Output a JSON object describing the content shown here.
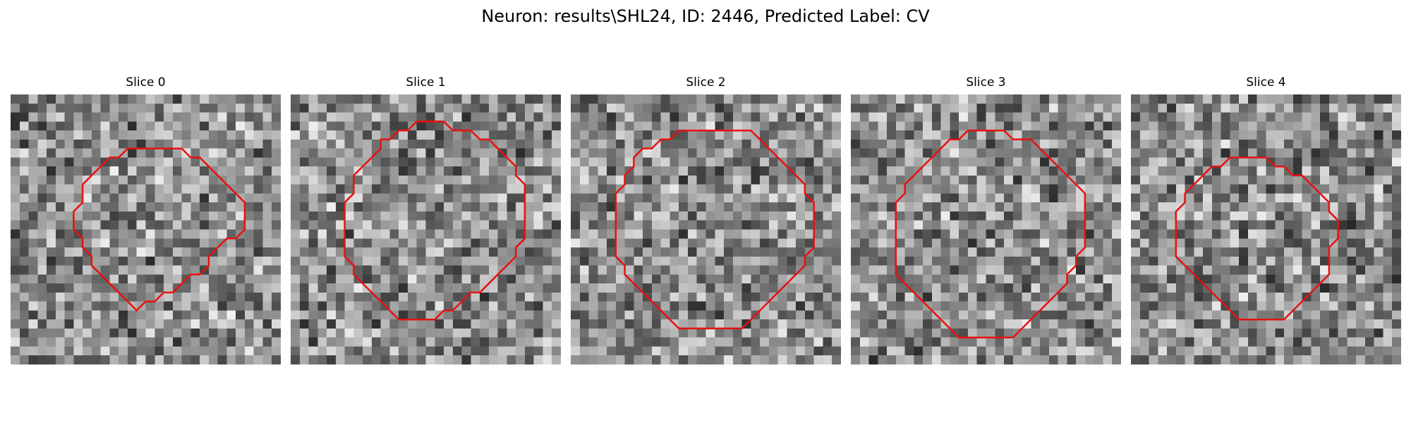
{
  "figure": {
    "title": "Neuron: results\\SHL24, ID: 2446, Predicted Label: CV",
    "contour_color": "#e8110f"
  },
  "panels": [
    {
      "title": "Slice 0",
      "seed": 11,
      "contour": [
        [
          14,
          6
        ],
        [
          19,
          6
        ],
        [
          20,
          7
        ],
        [
          21,
          7
        ],
        [
          22,
          8
        ],
        [
          23,
          9
        ],
        [
          24,
          10
        ],
        [
          25,
          11
        ],
        [
          26,
          12
        ],
        [
          26,
          13
        ],
        [
          26,
          14
        ],
        [
          26,
          15
        ],
        [
          25,
          16
        ],
        [
          24,
          16
        ],
        [
          23,
          17
        ],
        [
          22,
          18
        ],
        [
          22,
          19
        ],
        [
          21,
          20
        ],
        [
          20,
          20
        ],
        [
          19,
          21
        ],
        [
          18,
          22
        ],
        [
          17,
          22
        ],
        [
          16,
          23
        ],
        [
          15,
          23
        ],
        [
          14,
          24
        ],
        [
          13,
          23
        ],
        [
          12,
          22
        ],
        [
          11,
          21
        ],
        [
          10,
          20
        ],
        [
          9,
          19
        ],
        [
          9,
          18
        ],
        [
          8,
          17
        ],
        [
          8,
          16
        ],
        [
          7,
          15
        ],
        [
          7,
          14
        ],
        [
          7,
          13
        ],
        [
          8,
          12
        ],
        [
          8,
          11
        ],
        [
          8,
          10
        ],
        [
          9,
          9
        ],
        [
          10,
          8
        ],
        [
          11,
          7
        ],
        [
          12,
          7
        ],
        [
          13,
          6
        ],
        [
          14,
          6
        ]
      ]
    },
    {
      "title": "Slice 1",
      "seed": 23,
      "contour": [
        [
          14,
          3
        ],
        [
          17,
          3
        ],
        [
          18,
          4
        ],
        [
          19,
          4
        ],
        [
          20,
          4
        ],
        [
          21,
          5
        ],
        [
          22,
          5
        ],
        [
          23,
          6
        ],
        [
          24,
          7
        ],
        [
          25,
          8
        ],
        [
          25,
          9
        ],
        [
          26,
          10
        ],
        [
          26,
          11
        ],
        [
          26,
          12
        ],
        [
          26,
          13
        ],
        [
          26,
          14
        ],
        [
          26,
          15
        ],
        [
          26,
          16
        ],
        [
          25,
          17
        ],
        [
          25,
          18
        ],
        [
          24,
          19
        ],
        [
          23,
          20
        ],
        [
          22,
          21
        ],
        [
          21,
          22
        ],
        [
          20,
          22
        ],
        [
          19,
          23
        ],
        [
          18,
          24
        ],
        [
          17,
          24
        ],
        [
          16,
          25
        ],
        [
          15,
          25
        ],
        [
          14,
          25
        ],
        [
          13,
          25
        ],
        [
          12,
          25
        ],
        [
          11,
          24
        ],
        [
          10,
          23
        ],
        [
          9,
          22
        ],
        [
          8,
          21
        ],
        [
          7,
          20
        ],
        [
          7,
          19
        ],
        [
          6,
          18
        ],
        [
          6,
          17
        ],
        [
          6,
          16
        ],
        [
          6,
          15
        ],
        [
          6,
          14
        ],
        [
          6,
          13
        ],
        [
          6,
          12
        ],
        [
          7,
          11
        ],
        [
          7,
          10
        ],
        [
          7,
          9
        ],
        [
          8,
          8
        ],
        [
          9,
          7
        ],
        [
          10,
          6
        ],
        [
          10,
          5
        ],
        [
          11,
          5
        ],
        [
          12,
          4
        ],
        [
          13,
          4
        ],
        [
          14,
          3
        ]
      ]
    },
    {
      "title": "Slice 2",
      "seed": 37,
      "contour": [
        [
          12,
          4
        ],
        [
          20,
          4
        ],
        [
          21,
          5
        ],
        [
          22,
          6
        ],
        [
          23,
          7
        ],
        [
          24,
          8
        ],
        [
          25,
          9
        ],
        [
          26,
          10
        ],
        [
          26,
          11
        ],
        [
          27,
          12
        ],
        [
          27,
          13
        ],
        [
          27,
          14
        ],
        [
          27,
          15
        ],
        [
          27,
          16
        ],
        [
          27,
          17
        ],
        [
          26,
          18
        ],
        [
          26,
          19
        ],
        [
          25,
          20
        ],
        [
          24,
          21
        ],
        [
          23,
          22
        ],
        [
          22,
          23
        ],
        [
          21,
          24
        ],
        [
          20,
          25
        ],
        [
          19,
          26
        ],
        [
          18,
          26
        ],
        [
          13,
          26
        ],
        [
          12,
          26
        ],
        [
          11,
          25
        ],
        [
          10,
          24
        ],
        [
          9,
          23
        ],
        [
          8,
          22
        ],
        [
          7,
          21
        ],
        [
          6,
          20
        ],
        [
          6,
          19
        ],
        [
          5,
          18
        ],
        [
          5,
          17
        ],
        [
          5,
          16
        ],
        [
          5,
          15
        ],
        [
          5,
          14
        ],
        [
          5,
          13
        ],
        [
          5,
          12
        ],
        [
          5,
          11
        ],
        [
          6,
          10
        ],
        [
          6,
          9
        ],
        [
          7,
          8
        ],
        [
          7,
          7
        ],
        [
          8,
          6
        ],
        [
          9,
          6
        ],
        [
          10,
          5
        ],
        [
          11,
          5
        ],
        [
          12,
          4
        ]
      ]
    },
    {
      "title": "Slice 3",
      "seed": 51,
      "contour": [
        [
          13,
          4
        ],
        [
          17,
          4
        ],
        [
          18,
          5
        ],
        [
          19,
          5
        ],
        [
          20,
          5
        ],
        [
          21,
          6
        ],
        [
          22,
          7
        ],
        [
          23,
          8
        ],
        [
          24,
          9
        ],
        [
          25,
          10
        ],
        [
          26,
          11
        ],
        [
          26,
          12
        ],
        [
          26,
          13
        ],
        [
          26,
          14
        ],
        [
          26,
          15
        ],
        [
          26,
          16
        ],
        [
          26,
          17
        ],
        [
          25,
          18
        ],
        [
          25,
          19
        ],
        [
          24,
          20
        ],
        [
          24,
          21
        ],
        [
          23,
          22
        ],
        [
          22,
          23
        ],
        [
          21,
          24
        ],
        [
          20,
          25
        ],
        [
          19,
          26
        ],
        [
          18,
          27
        ],
        [
          17,
          27
        ],
        [
          16,
          27
        ],
        [
          15,
          27
        ],
        [
          14,
          27
        ],
        [
          13,
          27
        ],
        [
          12,
          27
        ],
        [
          11,
          26
        ],
        [
          10,
          25
        ],
        [
          9,
          24
        ],
        [
          8,
          23
        ],
        [
          7,
          22
        ],
        [
          6,
          21
        ],
        [
          5,
          20
        ],
        [
          5,
          19
        ],
        [
          5,
          18
        ],
        [
          5,
          17
        ],
        [
          5,
          16
        ],
        [
          5,
          15
        ],
        [
          5,
          14
        ],
        [
          5,
          13
        ],
        [
          5,
          12
        ],
        [
          6,
          11
        ],
        [
          6,
          10
        ],
        [
          7,
          9
        ],
        [
          8,
          8
        ],
        [
          9,
          7
        ],
        [
          10,
          6
        ],
        [
          11,
          5
        ],
        [
          12,
          5
        ],
        [
          13,
          4
        ]
      ]
    },
    {
      "title": "Slice 4",
      "seed": 67,
      "contour": [
        [
          12,
          7
        ],
        [
          15,
          7
        ],
        [
          16,
          8
        ],
        [
          17,
          8
        ],
        [
          18,
          9
        ],
        [
          19,
          9
        ],
        [
          20,
          10
        ],
        [
          21,
          11
        ],
        [
          22,
          12
        ],
        [
          22,
          13
        ],
        [
          23,
          14
        ],
        [
          23,
          15
        ],
        [
          23,
          16
        ],
        [
          22,
          17
        ],
        [
          22,
          18
        ],
        [
          22,
          19
        ],
        [
          22,
          20
        ],
        [
          21,
          21
        ],
        [
          20,
          22
        ],
        [
          19,
          23
        ],
        [
          18,
          24
        ],
        [
          17,
          25
        ],
        [
          16,
          25
        ],
        [
          15,
          25
        ],
        [
          14,
          25
        ],
        [
          13,
          25
        ],
        [
          12,
          25
        ],
        [
          11,
          24
        ],
        [
          10,
          23
        ],
        [
          9,
          22
        ],
        [
          8,
          21
        ],
        [
          7,
          20
        ],
        [
          6,
          19
        ],
        [
          5,
          18
        ],
        [
          5,
          17
        ],
        [
          5,
          16
        ],
        [
          5,
          15
        ],
        [
          5,
          14
        ],
        [
          5,
          13
        ],
        [
          6,
          12
        ],
        [
          6,
          11
        ],
        [
          7,
          10
        ],
        [
          8,
          9
        ],
        [
          9,
          8
        ],
        [
          10,
          8
        ],
        [
          11,
          7
        ],
        [
          12,
          7
        ]
      ]
    }
  ]
}
